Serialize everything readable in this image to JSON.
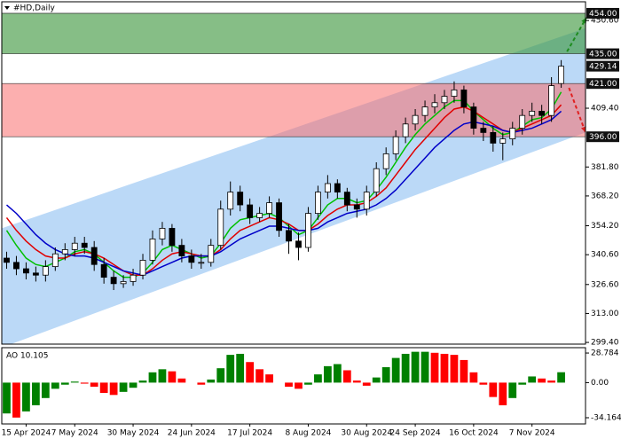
{
  "chart_data": [
    {
      "type": "candlestick",
      "title": "#HD,Daily",
      "categories": [
        null,
        null,
        "15 Apr 2024",
        null,
        null,
        null,
        null,
        "7 May 2024",
        null,
        null,
        null,
        null,
        null,
        "30 May 2024",
        null,
        null,
        null,
        null,
        null,
        "24 Jun 2024",
        null,
        null,
        null,
        null,
        null,
        "17 Jul 2024",
        null,
        null,
        null,
        null,
        null,
        "8 Aug 2024",
        null,
        null,
        null,
        null,
        null,
        "30 Aug 2024",
        null,
        null,
        null,
        null,
        "24 Sep 2024",
        null,
        null,
        null,
        null,
        null,
        "16 Oct 2024",
        null,
        null,
        null,
        null,
        null,
        "7 Nov 2024",
        null,
        null,
        null
      ],
      "open": [
        339,
        337,
        334,
        332,
        331,
        335,
        341,
        343,
        346,
        344,
        336,
        330,
        327,
        328,
        331,
        338,
        348,
        353,
        345,
        340,
        337,
        337,
        345,
        362,
        370,
        364,
        358,
        360,
        365,
        352,
        347,
        344,
        360,
        370,
        374,
        370,
        364,
        362,
        370,
        381,
        388,
        396,
        402,
        406,
        410,
        412,
        415,
        418,
        410,
        400,
        398,
        393,
        395,
        400,
        406,
        408,
        406,
        421
      ],
      "high": [
        342,
        340,
        337,
        335,
        338,
        344,
        346,
        349,
        349,
        347,
        339,
        333,
        331,
        334,
        341,
        352,
        356,
        355,
        348,
        343,
        341,
        348,
        366,
        375,
        373,
        367,
        363,
        368,
        367,
        355,
        351,
        363,
        373,
        378,
        376,
        372,
        367,
        373,
        384,
        391,
        399,
        405,
        409,
        413,
        416,
        418,
        422,
        420,
        412,
        403,
        401,
        398,
        403,
        409,
        412,
        411,
        424,
        432
      ],
      "low": [
        334,
        331,
        329,
        328,
        328,
        333,
        338,
        340,
        341,
        333,
        327,
        324,
        325,
        326,
        329,
        336,
        345,
        342,
        337,
        334,
        334,
        335,
        343,
        359,
        361,
        355,
        356,
        358,
        349,
        341,
        338,
        342,
        357,
        367,
        367,
        361,
        358,
        359,
        368,
        378,
        385,
        393,
        399,
        403,
        407,
        409,
        412,
        407,
        397,
        394,
        389,
        385,
        392,
        397,
        403,
        402,
        403,
        419
      ],
      "close": [
        337,
        334,
        332,
        331,
        335,
        341,
        343,
        346,
        344,
        336,
        330,
        327,
        328,
        331,
        338,
        348,
        353,
        345,
        340,
        337,
        337,
        345,
        362,
        370,
        364,
        358,
        360,
        365,
        352,
        347,
        344,
        360,
        370,
        374,
        370,
        364,
        362,
        370,
        381,
        388,
        396,
        402,
        406,
        410,
        412,
        415,
        418,
        410,
        400,
        398,
        393,
        395,
        400,
        406,
        408,
        406,
        420,
        429.14
      ],
      "up_color": "#ffffff",
      "down_color": "#000000",
      "series": [
        {
          "color": "#00c000",
          "values": [
            352,
            345,
            339,
            336,
            335,
            337,
            339,
            342,
            343,
            341,
            337,
            333,
            330,
            330,
            332,
            337,
            343,
            345,
            343,
            341,
            339,
            340,
            346,
            353,
            357,
            358,
            359,
            360,
            358,
            354,
            350,
            352,
            358,
            364,
            367,
            367,
            365,
            366,
            371,
            377,
            384,
            391,
            397,
            402,
            406,
            410,
            413,
            413,
            408,
            404,
            400,
            397,
            398,
            401,
            404,
            405,
            409,
            417
          ]
        },
        {
          "color": "#e00000",
          "values": [
            358,
            352,
            347,
            343,
            340,
            339,
            339,
            341,
            342,
            341,
            339,
            336,
            333,
            331,
            331,
            334,
            338,
            341,
            342,
            341,
            340,
            340,
            343,
            348,
            352,
            354,
            356,
            358,
            357,
            355,
            352,
            352,
            355,
            359,
            362,
            364,
            364,
            365,
            368,
            372,
            378,
            384,
            390,
            395,
            400,
            405,
            409,
            410,
            408,
            405,
            402,
            399,
            398,
            400,
            402,
            404,
            406,
            411
          ]
        },
        {
          "color": "#0000c8",
          "values": [
            364,
            360,
            355,
            350,
            346,
            343,
            341,
            340,
            340,
            339,
            337,
            335,
            333,
            332,
            331,
            333,
            335,
            337,
            339,
            340,
            340,
            340,
            342,
            345,
            348,
            350,
            352,
            354,
            354,
            353,
            352,
            352,
            353,
            356,
            358,
            360,
            361,
            362,
            364,
            367,
            371,
            376,
            381,
            386,
            391,
            395,
            399,
            402,
            403,
            402,
            401,
            399,
            398,
            399,
            400,
            402,
            404,
            408
          ]
        }
      ],
      "ylim": [
        298.6,
        459.4
      ],
      "yticks": [
        {
          "value": 299.4,
          "label": "299.40"
        },
        {
          "value": 313,
          "label": "313.00"
        },
        {
          "value": 326.6,
          "label": "326.60"
        },
        {
          "value": 340.6,
          "label": "340.60"
        },
        {
          "value": 354.2,
          "label": "354.20"
        },
        {
          "value": 368.2,
          "label": "368.20"
        },
        {
          "value": 381.8,
          "label": "381.80"
        },
        {
          "value": 409.4,
          "label": "409.40"
        },
        {
          "value": 450.6,
          "label": "450.60"
        }
      ],
      "zones": [
        {
          "from": 435,
          "to": 454,
          "color": "rgba(60,150,60,0.62)"
        },
        {
          "from": 396,
          "to": 421,
          "color": "rgba(250,110,110,0.55)"
        }
      ],
      "channel": {
        "x": [
          -0.5,
          59.5
        ],
        "upper": [
          353,
          447
        ],
        "lower": [
          297,
          398
        ],
        "color": "rgba(120,180,240,0.5)"
      },
      "arrows": [
        {
          "x": [
            57.6,
            59.6
          ],
          "y": [
            436,
            452
          ],
          "color": "#1e8c1e"
        },
        {
          "x": [
            57.8,
            59.5
          ],
          "y": [
            419,
            398
          ],
          "color": "#e02020"
        }
      ],
      "price_tags": [
        {
          "value": 454,
          "label": "454.00"
        },
        {
          "value": 435,
          "label": "435.00"
        },
        {
          "value": 429.14,
          "label": "429.14"
        },
        {
          "value": 421,
          "label": "421.00"
        },
        {
          "value": 396,
          "label": "396.00"
        }
      ]
    },
    {
      "type": "bar",
      "title": "AO 10.105",
      "values": [
        -30,
        -34,
        -28,
        -22,
        -15,
        -6,
        -2,
        1,
        -1,
        -4,
        -10,
        -12,
        -9,
        -5,
        2,
        10,
        13,
        11,
        4,
        0,
        -2,
        3,
        14,
        27,
        28,
        20,
        13,
        8,
        0,
        -4,
        -6,
        -2,
        8,
        16,
        18,
        12,
        2,
        -3,
        5,
        15,
        24,
        28,
        30,
        30,
        29,
        28,
        27,
        22,
        10,
        -2,
        -14,
        -22,
        -15,
        -2,
        6,
        4,
        2,
        10.105
      ],
      "up_color": "#008000",
      "down_color": "#ff0000",
      "ylim": [
        -40.2,
        34.0
      ],
      "yticks": [
        28.784,
        {
          "value": 0,
          "label": "0.00"
        },
        -34.164
      ]
    }
  ]
}
